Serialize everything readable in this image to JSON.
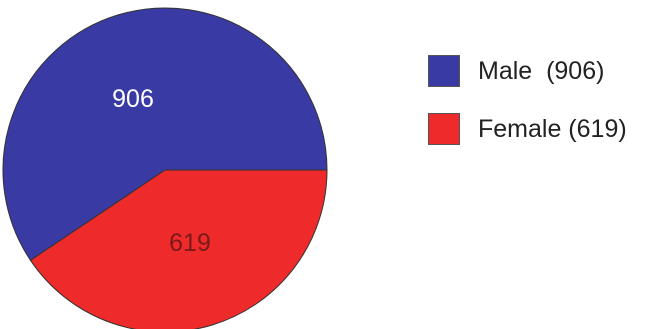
{
  "chart_data": {
    "type": "pie",
    "categories": [
      "Male",
      "Female"
    ],
    "values": [
      906,
      619
    ],
    "data_labels": [
      "906",
      "619"
    ],
    "colors": [
      "#3a3aa4",
      "#ee2a2a"
    ],
    "legend_position": "right",
    "legend": [
      {
        "label": "Male  (906)",
        "color": "#3a3aa4"
      },
      {
        "label": "Female (619)",
        "color": "#ee2a2a"
      }
    ]
  }
}
